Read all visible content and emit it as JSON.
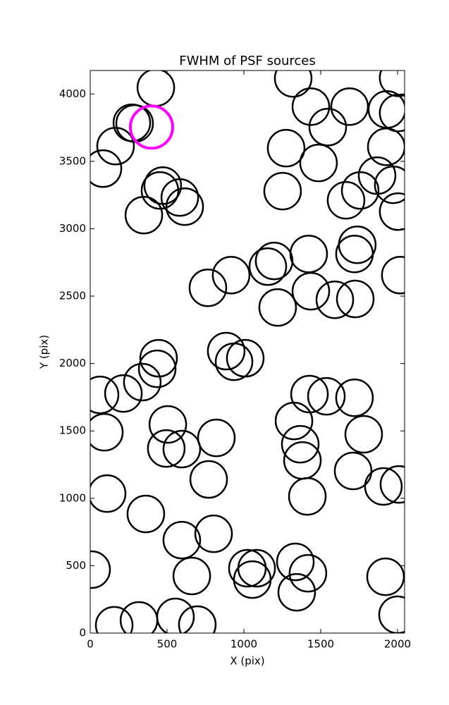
{
  "chart_data": {
    "type": "scatter",
    "title": "FWHM of PSF sources",
    "x_label": "X (pix)",
    "y_label": "Y (pix)",
    "xlim": [
      0,
      2046
    ],
    "ylim": [
      0,
      4174
    ],
    "xticks": [
      0,
      500,
      1000,
      1500,
      2000
    ],
    "yticks": [
      0,
      500,
      1000,
      1500,
      2000,
      2500,
      3000,
      3500,
      4000
    ],
    "series": [
      {
        "color": "#000000",
        "x": [
          427,
          271,
          289,
          165,
          83,
          472,
          454,
          583,
          615,
          349,
          1321,
          1436,
          1546,
          1688,
          1931,
          2004,
          2004,
          1275,
          1486,
          1927,
          1867,
          1757,
          1972,
          1665,
          2004,
          1252,
          1738,
          1720,
          1422,
          1197,
          1156,
          917,
          766,
          1436,
          1592,
          1725,
          1220,
          2018,
          885,
          936,
          1009,
          445,
          436,
          339,
          216,
          64,
          92,
          505,
          495,
          596,
          821,
          1326,
          1427,
          1537,
          1720,
          1780,
          1367,
          1381,
          1711,
          1908,
          2009,
          1413,
          771,
          110,
          362,
          596,
          803,
          661,
          9,
          1023,
          1083,
          1055,
          1335,
          1417,
          1344,
          1922,
          2000,
          156,
          317,
          555,
          697
        ],
        "values": [
          4047,
          3786,
          3781,
          3613,
          3446,
          3320,
          3284,
          3232,
          3164,
          3101,
          4115,
          3906,
          3754,
          3906,
          3885,
          3859,
          4120,
          3598,
          3488,
          3608,
          3394,
          3284,
          3326,
          3211,
          3127,
          3279,
          2881,
          2813,
          2813,
          2761,
          2719,
          2656,
          2562,
          2536,
          2473,
          2479,
          2416,
          2656,
          2092,
          2013,
          2039,
          2039,
          1961,
          1862,
          1778,
          1767,
          1490,
          1548,
          1370,
          1365,
          1448,
          1574,
          1773,
          1757,
          1746,
          1475,
          1401,
          1281,
          1203,
          1088,
          1103,
          1014,
          1140,
          1035,
          884,
          690,
          737,
          424,
          471,
          481,
          481,
          397,
          528,
          444,
          303,
          418,
          136,
          58,
          94,
          120,
          63
        ]
      },
      {
        "color": "#ff00ff",
        "x": [
          399
        ],
        "values": [
          3754
        ]
      }
    ]
  }
}
